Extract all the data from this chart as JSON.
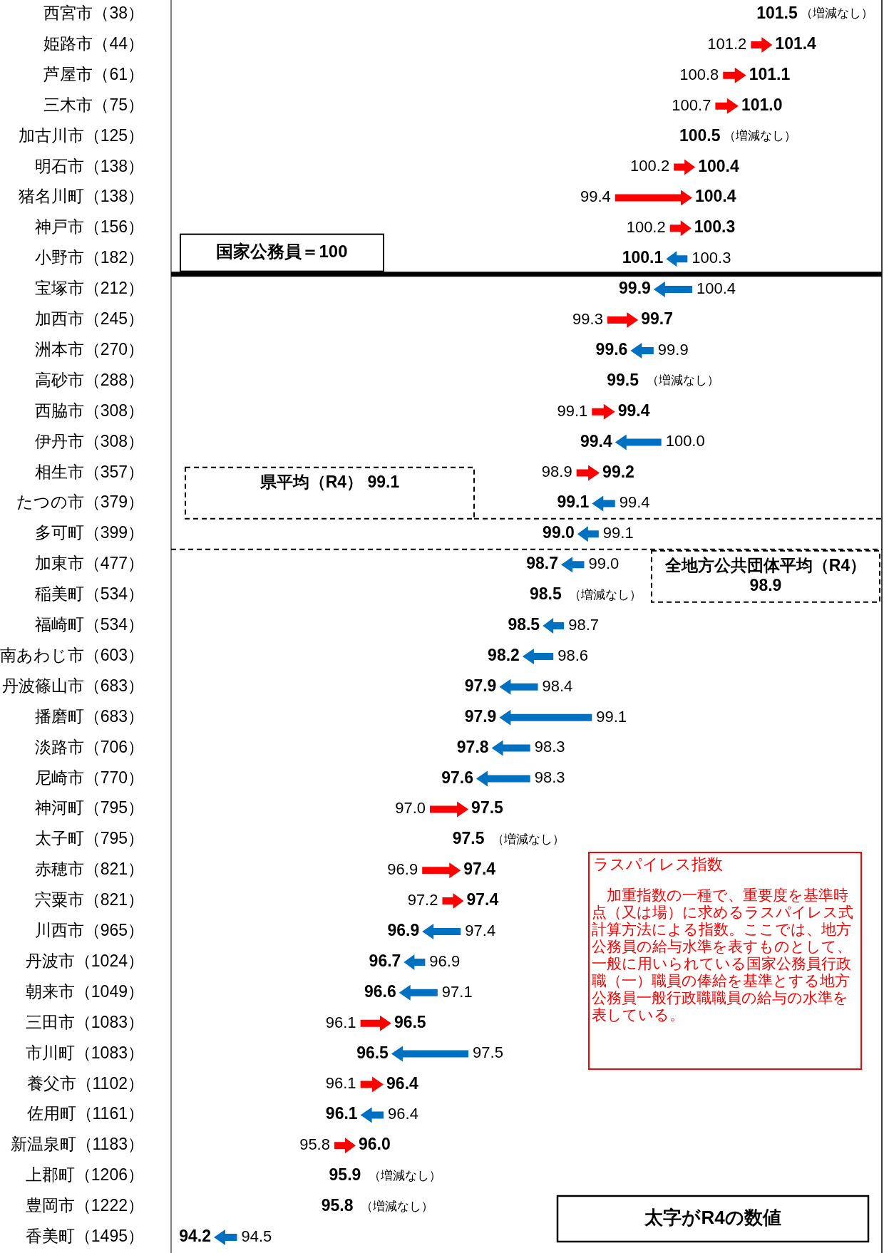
{
  "chart_data": {
    "type": "other",
    "categories": [
      "西宮市（38）",
      "姫路市（44）",
      "芦屋市（61）",
      "三木市（75）",
      "加古川市（125）",
      "明石市（138）",
      "猪名川町（138）",
      "神戸市（156）",
      "小野市（182）",
      "宝塚市（212）",
      "加西市（245）",
      "洲本市（270）",
      "高砂市（288）",
      "西脇市（308）",
      "伊丹市（308）",
      "相生市（357）",
      "たつの市（379）",
      "多可町（399）",
      "加東市（477）",
      "稲美町（534）",
      "福崎町（534）",
      "南あわじ市（603）",
      "丹波篠山市（683）",
      "播磨町（683）",
      "淡路市（706）",
      "尼崎市（770）",
      "神河町（795）",
      "太子町（795）",
      "赤穂市（821）",
      "宍粟市（821）",
      "川西市（965）",
      "丹波市（1024）",
      "朝来市（1049）",
      "三田市（1083）",
      "市川町（1083）",
      "養父市（1102）",
      "佐用町（1161）",
      "新温泉町（1183）",
      "上郡町（1206）",
      "豊岡市（1222）",
      "香美町（1495）"
    ],
    "series": [
      {
        "value_labels": [
          null,
          "101.2",
          "100.8",
          "100.7",
          null,
          "100.2",
          "99.4",
          "100.2",
          "100.3",
          "100.4",
          "99.3",
          "99.9",
          null,
          "99.1",
          "100.0",
          "98.9",
          "99.4",
          "99.1",
          "99.0",
          null,
          "98.7",
          "98.6",
          "98.4",
          "99.1",
          "98.3",
          "98.3",
          "97.0",
          null,
          "96.9",
          "97.2",
          "97.4",
          "96.9",
          "97.1",
          "96.1",
          "97.5",
          "96.1",
          "96.4",
          "95.8",
          null,
          null,
          "94.5"
        ],
        "values": [
          null,
          101.2,
          100.8,
          100.7,
          null,
          100.2,
          99.4,
          100.2,
          100.3,
          100.4,
          99.3,
          99.9,
          null,
          99.1,
          100.0,
          98.9,
          99.4,
          99.1,
          99.0,
          null,
          98.7,
          98.6,
          98.4,
          99.1,
          98.3,
          98.3,
          97.0,
          null,
          96.9,
          97.2,
          97.4,
          96.9,
          97.1,
          96.1,
          97.5,
          96.1,
          96.4,
          95.8,
          null,
          null,
          94.5
        ]
      },
      {
        "value_labels": [
          "101.5",
          "101.4",
          "101.1",
          "101.0",
          "100.5",
          "100.4",
          "100.4",
          "100.3",
          "100.1",
          "99.9",
          "99.7",
          "99.6",
          "99.5",
          "99.4",
          "99.4",
          "99.2",
          "99.1",
          "99.0",
          "98.7",
          "98.5",
          "98.5",
          "98.2",
          "97.9",
          "97.9",
          "97.8",
          "97.6",
          "97.5",
          "97.5",
          "97.4",
          "97.4",
          "96.9",
          "96.7",
          "96.6",
          "96.5",
          "96.5",
          "96.4",
          "96.1",
          "96.0",
          "95.9",
          "95.8",
          "94.2"
        ],
        "values": [
          101.5,
          101.4,
          101.1,
          101.0,
          100.5,
          100.4,
          100.4,
          100.3,
          100.1,
          99.9,
          99.7,
          99.6,
          99.5,
          99.4,
          99.4,
          99.2,
          99.1,
          99.0,
          98.7,
          98.5,
          98.5,
          98.2,
          97.9,
          97.9,
          97.8,
          97.6,
          97.5,
          97.5,
          97.4,
          97.4,
          96.9,
          96.7,
          96.6,
          96.5,
          96.5,
          96.4,
          96.1,
          96.0,
          95.9,
          95.8,
          94.2
        ],
        "colors": [
          null,
          "#ff0000",
          "#ff0000",
          "#ff0000",
          null,
          "#ff0000",
          "#ff0000",
          "#ff0000",
          "#0070c0",
          "#0070c0",
          "#ff0000",
          "#0070c0",
          null,
          "#ff0000",
          "#0070c0",
          "#ff0000",
          "#0070c0",
          "#0070c0",
          "#0070c0",
          null,
          "#0070c0",
          "#0070c0",
          "#0070c0",
          "#0070c0",
          "#0070c0",
          "#0070c0",
          "#ff0000",
          null,
          "#ff0000",
          "#ff0000",
          "#0070c0",
          "#0070c0",
          "#0070c0",
          "#ff0000",
          "#0070c0",
          "#ff0000",
          "#0070c0",
          "#ff0000",
          null,
          null,
          "#0070c0"
        ]
      }
    ],
    "annotations": [
      {
        "text": "国家公務員＝100",
        "y": "小野市（182）"
      },
      {
        "text": "県平均（R4） 99.1",
        "y": "たつの市（379）"
      },
      {
        "text": "全地方公共団体平均（R4） 98.9",
        "y": "多可町（399）"
      },
      {
        "text": "（増減なし）",
        "y": "西宮市（38）"
      },
      {
        "text": "（増減なし）",
        "y": "加古川市（125）"
      },
      {
        "text": "（増減なし）",
        "y": "高砂市（288）"
      },
      {
        "text": "（増減なし）",
        "y": "稲美町（534）"
      },
      {
        "text": "（増減なし）",
        "y": "太子町（795）"
      },
      {
        "text": "（増減なし）",
        "y": "上郡町（1206）"
      },
      {
        "text": "（増減なし）",
        "y": "豊岡市（1222）"
      },
      "ラスパイレス指数",
      "　加重指数の一種で、重要度を基準時点（又は場）に求めるラスパイレス式計算方法による指数。ここでは、地方公務員の給与水準を表すものとして、一般に用いられている国家公務員行政職（一）職員の俸給を基準とする地方公務員一般行政職職員の給与の水準を表している。",
      "太字がR4の数値"
    ]
  }
}
